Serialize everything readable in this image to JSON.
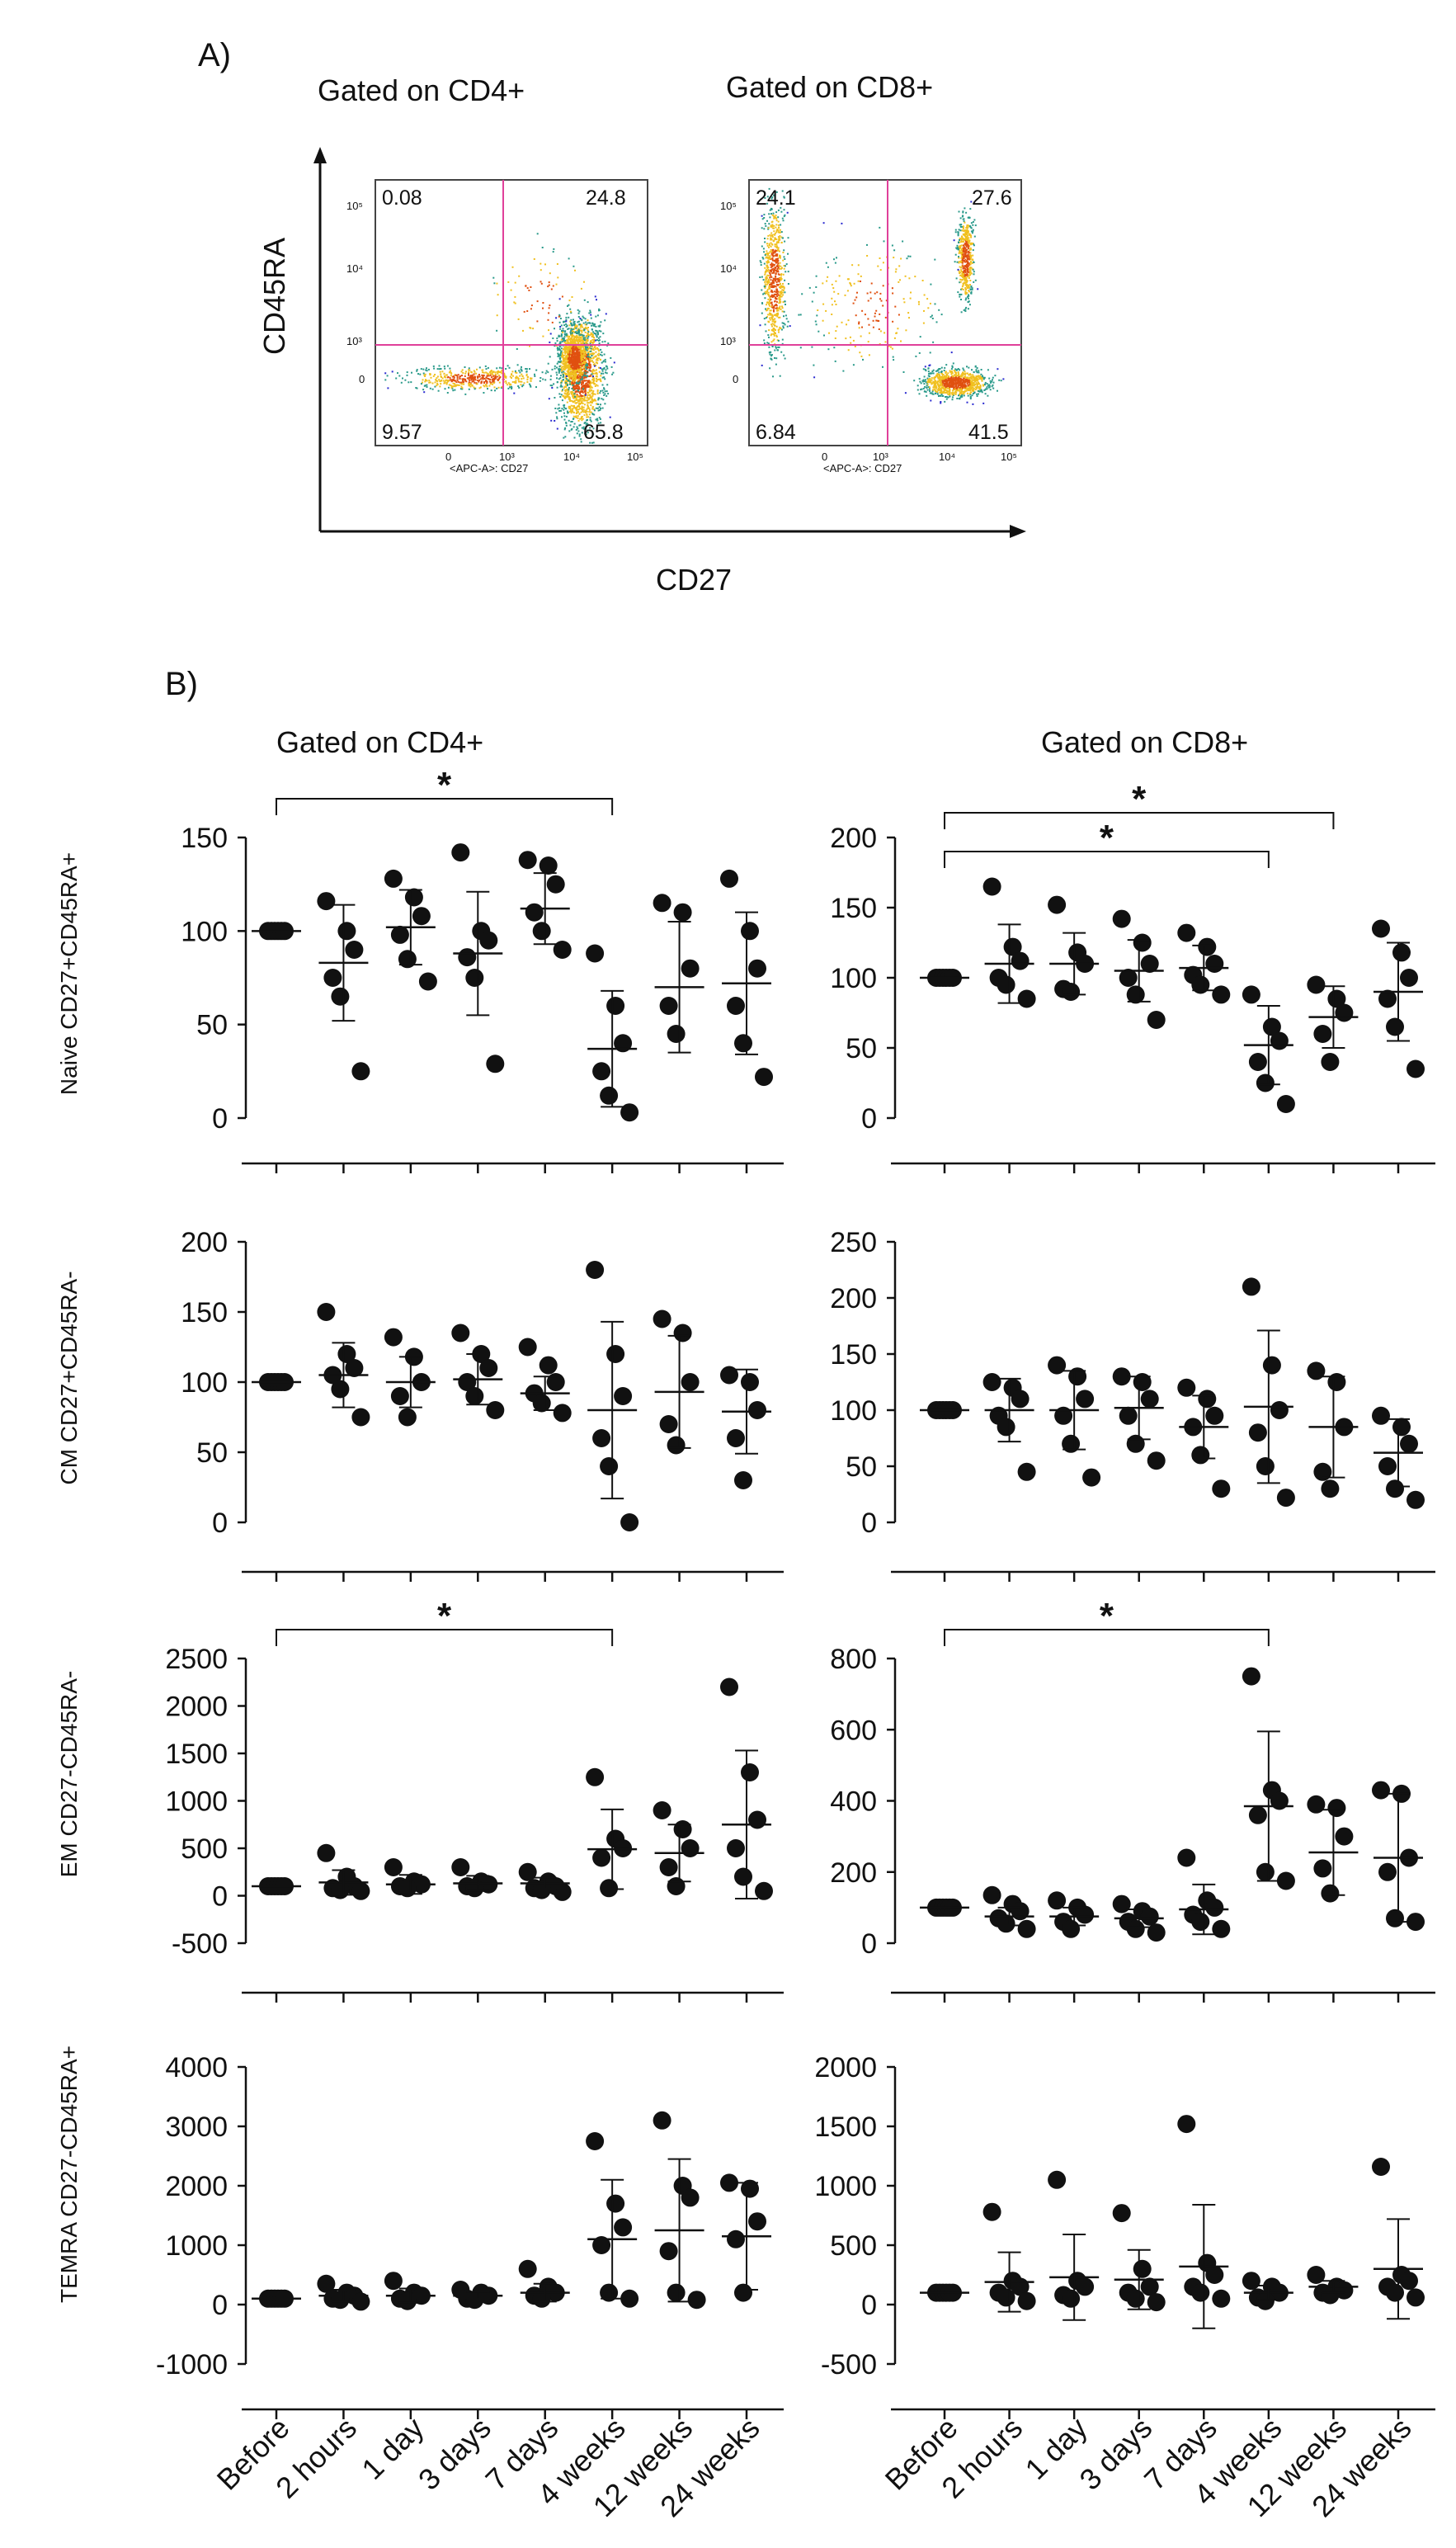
{
  "panel_a": {
    "label": "A)",
    "titles": [
      "Gated on CD4+",
      "Gated on CD8+"
    ],
    "y_axis_label": "CD45RA",
    "x_axis_label": "CD27",
    "inner_x_label": "<APC-A>: CD27",
    "x_ticks": [
      "0",
      "10³",
      "10⁴",
      "10⁵"
    ],
    "y_ticks": [
      "10⁵",
      "10⁴",
      "10³",
      "0"
    ],
    "plots": [
      {
        "name": "CD4",
        "quadrants": {
          "ul": "0.08",
          "ur": "24.8",
          "ll": "9.57",
          "lr": "65.8"
        }
      },
      {
        "name": "CD8",
        "quadrants": {
          "ul": "24.1",
          "ur": "27.6",
          "ll": "6.84",
          "lr": "41.5"
        }
      }
    ],
    "colors": {
      "gate": "#e0409a",
      "low": "#2a2ad0",
      "mid": "#2a9a8a",
      "high": "#f0c020",
      "peak": "#e05010"
    }
  },
  "panel_b": {
    "label": "B)",
    "col_titles": [
      "Gated on CD4+",
      "Gated on CD8+"
    ],
    "categories": [
      "Before",
      "2 hours",
      "1 day",
      "3 days",
      "7 days",
      "4 weeks",
      "12 weeks",
      "24 weeks"
    ],
    "row_labels": [
      "Naive CD27+CD45RA+",
      "CM CD27+CD45RA-",
      "EM CD27-CD45RA-",
      "TEMRA CD27-CD45RA+"
    ]
  },
  "chart_data": [
    {
      "type": "scatter",
      "title": "Gated on CD4+",
      "ylabel": "Naive CD27+CD45RA+",
      "categories": [
        "Before",
        "2 hours",
        "1 day",
        "3 days",
        "7 days",
        "4 weeks",
        "12 weeks",
        "24 weeks"
      ],
      "ylim": [
        0,
        150
      ],
      "yticks": [
        0,
        50,
        100,
        150
      ],
      "points": [
        [
          100,
          100,
          100,
          100,
          100,
          100
        ],
        [
          116,
          100,
          90,
          75,
          65,
          25
        ],
        [
          128,
          118,
          108,
          98,
          85,
          73
        ],
        [
          142,
          100,
          95,
          86,
          75,
          29
        ],
        [
          138,
          135,
          125,
          110,
          100,
          90
        ],
        [
          88,
          60,
          40,
          25,
          12,
          3
        ],
        [
          115,
          110,
          80,
          60,
          45
        ],
        [
          128,
          100,
          80,
          60,
          40,
          22
        ]
      ],
      "means": [
        100,
        83,
        102,
        88,
        112,
        37,
        70,
        72
      ],
      "errors": [
        0,
        31,
        20,
        33,
        19,
        31,
        35,
        38
      ],
      "significance": [
        {
          "from": 0,
          "to": 5,
          "label": "*"
        }
      ]
    },
    {
      "type": "scatter",
      "title": "Gated on CD8+",
      "ylabel": "",
      "categories": [
        "Before",
        "2 hours",
        "1 day",
        "3 days",
        "7 days",
        "4 weeks",
        "12 weeks",
        "24 weeks"
      ],
      "ylim": [
        0,
        200
      ],
      "yticks": [
        0,
        50,
        100,
        150,
        200
      ],
      "points": [
        [
          100,
          100,
          100,
          100,
          100,
          100
        ],
        [
          165,
          122,
          112,
          100,
          95,
          85
        ],
        [
          152,
          118,
          110,
          92,
          90
        ],
        [
          142,
          125,
          110,
          100,
          88,
          70
        ],
        [
          132,
          122,
          110,
          102,
          95,
          88
        ],
        [
          88,
          65,
          55,
          40,
          25,
          10
        ],
        [
          95,
          85,
          75,
          60,
          40
        ],
        [
          135,
          118,
          100,
          85,
          65,
          35
        ]
      ],
      "means": [
        100,
        110,
        110,
        105,
        107,
        52,
        72,
        90
      ],
      "errors": [
        0,
        28,
        22,
        22,
        16,
        28,
        22,
        35
      ],
      "significance": [
        {
          "from": 0,
          "to": 6,
          "label": "*"
        },
        {
          "from": 0,
          "to": 5,
          "label": "*"
        }
      ]
    },
    {
      "type": "scatter",
      "title": "Gated on CD4+",
      "ylabel": "CM CD27+CD45RA-",
      "categories": [
        "Before",
        "2 hours",
        "1 day",
        "3 days",
        "7 days",
        "4 weeks",
        "12 weeks",
        "24 weeks"
      ],
      "ylim": [
        0,
        200
      ],
      "yticks": [
        0,
        50,
        100,
        150,
        200
      ],
      "points": [
        [
          100,
          100,
          100,
          100,
          100,
          100
        ],
        [
          150,
          120,
          110,
          105,
          95,
          75
        ],
        [
          132,
          118,
          100,
          90,
          75
        ],
        [
          135,
          120,
          110,
          100,
          90,
          80
        ],
        [
          125,
          112,
          100,
          92,
          85,
          78
        ],
        [
          180,
          120,
          90,
          60,
          40,
          0
        ],
        [
          145,
          135,
          100,
          70,
          55
        ],
        [
          105,
          100,
          80,
          60,
          30
        ]
      ],
      "means": [
        100,
        105,
        100,
        102,
        92,
        80,
        93,
        79
      ],
      "errors": [
        0,
        23,
        18,
        18,
        12,
        63,
        40,
        30
      ],
      "significance": []
    },
    {
      "type": "scatter",
      "title": "Gated on CD8+",
      "ylabel": "",
      "categories": [
        "Before",
        "2 hours",
        "1 day",
        "3 days",
        "7 days",
        "4 weeks",
        "12 weeks",
        "24 weeks"
      ],
      "ylim": [
        0,
        250
      ],
      "yticks": [
        0,
        50,
        100,
        150,
        200,
        250
      ],
      "points": [
        [
          100,
          100,
          100,
          100,
          100,
          100
        ],
        [
          125,
          120,
          110,
          95,
          85,
          45
        ],
        [
          140,
          130,
          110,
          95,
          70,
          40
        ],
        [
          130,
          125,
          110,
          95,
          70,
          55
        ],
        [
          120,
          110,
          95,
          85,
          60,
          30
        ],
        [
          210,
          140,
          100,
          80,
          50,
          22
        ],
        [
          135,
          125,
          85,
          45,
          30
        ],
        [
          95,
          85,
          70,
          50,
          30,
          20
        ]
      ],
      "means": [
        100,
        100,
        100,
        102,
        85,
        103,
        85,
        62
      ],
      "errors": [
        0,
        28,
        35,
        28,
        28,
        68,
        45,
        30
      ],
      "significance": []
    },
    {
      "type": "scatter",
      "title": "Gated on CD4+",
      "ylabel": "EM CD27-CD45RA-",
      "categories": [
        "Before",
        "2 hours",
        "1 day",
        "3 days",
        "7 days",
        "4 weeks",
        "12 weeks",
        "24 weeks"
      ],
      "ylim": [
        -500,
        2500
      ],
      "yticks": [
        -500,
        0,
        500,
        1000,
        1500,
        2000,
        2500
      ],
      "points": [
        [
          100,
          100,
          100,
          100,
          100,
          100
        ],
        [
          450,
          200,
          100,
          80,
          60,
          50
        ],
        [
          300,
          150,
          120,
          100,
          80
        ],
        [
          300,
          150,
          120,
          100,
          80
        ],
        [
          250,
          150,
          100,
          80,
          60,
          40
        ],
        [
          1250,
          600,
          500,
          400,
          80
        ],
        [
          900,
          700,
          500,
          300,
          100
        ],
        [
          2200,
          1300,
          800,
          500,
          200,
          50
        ]
      ],
      "means": [
        100,
        140,
        120,
        130,
        130,
        490,
        450,
        750
      ],
      "errors": [
        0,
        130,
        100,
        80,
        60,
        420,
        300,
        780
      ],
      "significance": [
        {
          "from": 0,
          "to": 5,
          "label": "*"
        }
      ]
    },
    {
      "type": "scatter",
      "title": "Gated on CD8+",
      "ylabel": "",
      "categories": [
        "Before",
        "2 hours",
        "1 day",
        "3 days",
        "7 days",
        "4 weeks",
        "12 weeks",
        "24 weeks"
      ],
      "ylim": [
        0,
        800
      ],
      "yticks": [
        0,
        200,
        400,
        600,
        800
      ],
      "points": [
        [
          100,
          100,
          100,
          100,
          100,
          100
        ],
        [
          135,
          110,
          90,
          70,
          55,
          40
        ],
        [
          120,
          100,
          80,
          60,
          40
        ],
        [
          110,
          90,
          75,
          60,
          40,
          30
        ],
        [
          240,
          120,
          100,
          80,
          60,
          40
        ],
        [
          750,
          430,
          400,
          360,
          200,
          175
        ],
        [
          390,
          380,
          300,
          210,
          140
        ],
        [
          430,
          420,
          240,
          200,
          70,
          60
        ]
      ],
      "means": [
        100,
        75,
        75,
        70,
        95,
        385,
        255,
        240
      ],
      "errors": [
        0,
        25,
        25,
        25,
        70,
        210,
        120,
        180
      ],
      "significance": [
        {
          "from": 0,
          "to": 5,
          "label": "*"
        }
      ]
    },
    {
      "type": "scatter",
      "title": "Gated on CD4+",
      "ylabel": "TEMRA CD27-CD45RA+",
      "categories": [
        "Before",
        "2 hours",
        "1 day",
        "3 days",
        "7 days",
        "4 weeks",
        "12 weeks",
        "24 weeks"
      ],
      "ylim": [
        -1000,
        4000
      ],
      "yticks": [
        -1000,
        0,
        1000,
        2000,
        3000,
        4000
      ],
      "points": [
        [
          100,
          100,
          100,
          100,
          100,
          100
        ],
        [
          350,
          200,
          150,
          100,
          80,
          50
        ],
        [
          400,
          200,
          150,
          100,
          60
        ],
        [
          250,
          200,
          150,
          100,
          80
        ],
        [
          600,
          300,
          200,
          150,
          100
        ],
        [
          2750,
          1700,
          1300,
          1000,
          200,
          100
        ],
        [
          3100,
          2000,
          1800,
          900,
          200,
          80
        ],
        [
          2050,
          1950,
          1400,
          1100,
          200
        ]
      ],
      "means": [
        100,
        150,
        150,
        150,
        200,
        1100,
        1250,
        1150
      ],
      "errors": [
        0,
        100,
        120,
        60,
        150,
        1000,
        1200,
        900
      ],
      "significance": []
    },
    {
      "type": "scatter",
      "title": "Gated on CD8+",
      "ylabel": "",
      "categories": [
        "Before",
        "2 hours",
        "1 day",
        "3 days",
        "7 days",
        "4 weeks",
        "12 weeks",
        "24 weeks"
      ],
      "ylim": [
        -500,
        2000
      ],
      "yticks": [
        -500,
        0,
        500,
        1000,
        1500,
        2000
      ],
      "points": [
        [
          100,
          100,
          100,
          100,
          100,
          100
        ],
        [
          780,
          200,
          150,
          100,
          60,
          30
        ],
        [
          1050,
          200,
          150,
          80,
          50
        ],
        [
          770,
          300,
          150,
          100,
          50,
          20
        ],
        [
          1520,
          350,
          250,
          150,
          100,
          50
        ],
        [
          200,
          150,
          100,
          60,
          30
        ],
        [
          250,
          150,
          120,
          100,
          80
        ],
        [
          1160,
          250,
          200,
          150,
          100,
          60
        ]
      ],
      "means": [
        100,
        190,
        230,
        210,
        320,
        100,
        150,
        300
      ],
      "errors": [
        0,
        250,
        360,
        250,
        520,
        60,
        50,
        420
      ],
      "significance": []
    }
  ]
}
